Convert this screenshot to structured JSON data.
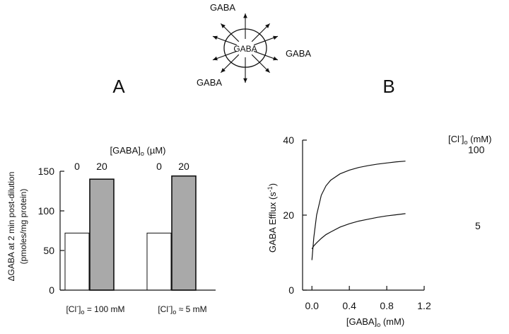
{
  "diagram": {
    "center_label": "GABA",
    "labels": [
      "GABA",
      "GABA",
      "GABA"
    ]
  },
  "panels": {
    "a": "A",
    "b": "B"
  },
  "chart_data": [
    {
      "type": "bar",
      "panel": "A",
      "legend_title": {
        "prefix": "[GABA]",
        "sub": "o",
        "suffix": " (µM)"
      },
      "bar_labels": [
        "0",
        "20",
        "0",
        "20"
      ],
      "groups": [
        {
          "label": {
            "prefix": "[Cl",
            "sup": "-",
            "sub": "o",
            "suffix": " = 100 mM"
          }
        },
        {
          "label": {
            "prefix": "[Cl",
            "sup": "-",
            "sub": "o",
            "suffix": " ≈ 5 mM"
          }
        }
      ],
      "series": [
        {
          "name": "0",
          "color": "#ffffff",
          "values": [
            72,
            72
          ]
        },
        {
          "name": "20",
          "color": "#a9a9a9",
          "values": [
            140,
            144
          ]
        }
      ],
      "ylabel_line1": "ΔGABA at 2 min post-dilution",
      "ylabel_line2": "(pmoles/mg protein)",
      "ylim": [
        0,
        150
      ],
      "yticks": [
        0,
        50,
        100,
        150
      ],
      "grid": false
    },
    {
      "type": "line",
      "panel": "B",
      "xlabel": {
        "prefix": "[GABA]",
        "sub": "o",
        "suffix": " (mM)"
      },
      "ylabel": {
        "prefix": "GABA Efflux (s",
        "sup": "-1",
        "suffix": ")"
      },
      "legend_title": {
        "prefix": "[Cl",
        "sup": "-",
        "sub": "o",
        "suffix": " (mM)"
      },
      "xlim": [
        -0.1,
        1.2
      ],
      "ylim": [
        0,
        40
      ],
      "xticks": [
        0.0,
        0.4,
        0.8,
        1.2
      ],
      "xtick_labels": [
        "0.0",
        "0.4",
        "0.8",
        "1.2"
      ],
      "yticks": [
        0,
        20,
        40
      ],
      "grid": false,
      "series": [
        {
          "name": "100",
          "x": [
            0.0,
            0.02,
            0.05,
            0.1,
            0.15,
            0.2,
            0.3,
            0.4,
            0.5,
            0.6,
            0.7,
            0.8,
            0.9,
            1.0
          ],
          "y": [
            8.0,
            14.0,
            20.0,
            25.3,
            27.8,
            29.3,
            31.0,
            32.0,
            32.7,
            33.2,
            33.6,
            33.9,
            34.2,
            34.4
          ]
        },
        {
          "name": "5",
          "x": [
            0.0,
            0.02,
            0.05,
            0.1,
            0.15,
            0.2,
            0.3,
            0.4,
            0.5,
            0.6,
            0.7,
            0.8,
            0.9,
            1.0
          ],
          "y": [
            11.0,
            11.8,
            12.6,
            13.8,
            14.8,
            15.5,
            16.8,
            17.7,
            18.4,
            18.9,
            19.4,
            19.8,
            20.1,
            20.4
          ]
        }
      ]
    }
  ]
}
